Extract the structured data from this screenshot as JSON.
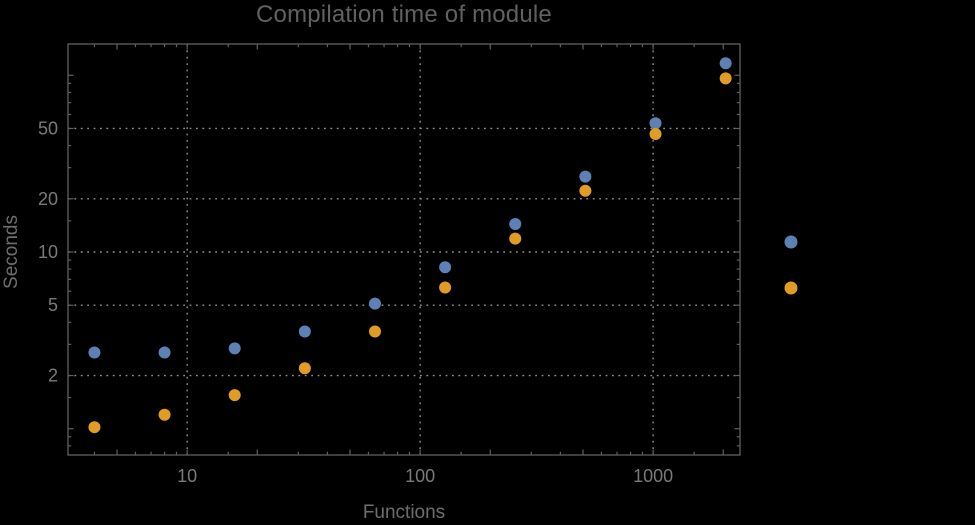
{
  "window": {
    "background": "#000000"
  },
  "colors": {
    "background": "#000000",
    "frame": "#5f5f5f",
    "grid": "#8f8f8f",
    "tick_label": "#7a7a7a",
    "title_text": "#616161",
    "axis_label_text": "#6e6e6e",
    "series_blue": "#5E81B5",
    "series_orange": "#E19C24"
  },
  "chart_data": {
    "type": "scatter",
    "title": "Compilation time of module",
    "xlabel": "Functions",
    "ylabel": "Seconds",
    "x_scale": "log",
    "y_scale": "log",
    "x_range": [
      3.08,
      2360
    ],
    "y_range": [
      0.71,
      150.3
    ],
    "x_ticks_labeled": [
      10,
      100,
      1000
    ],
    "y_ticks_labeled": [
      2,
      5,
      10,
      20,
      50
    ],
    "grid": "dotted gray lines at labeled ticks; full frame with inward log minor ticks on all four sides",
    "legend_position": "outside right of frame, marker dots only (no visible label text)",
    "x": [
      4,
      8,
      16,
      32,
      64,
      128,
      256,
      512,
      1024,
      2048
    ],
    "series": [
      {
        "name": "blue",
        "color": "#5E81B5",
        "values": [
          2.7,
          2.7,
          2.85,
          3.55,
          5.1,
          8.2,
          14.4,
          26.7,
          53.5,
          117
        ]
      },
      {
        "name": "orange",
        "color": "#E19C24",
        "values": [
          1.02,
          1.2,
          1.55,
          2.2,
          3.55,
          6.3,
          11.9,
          22.2,
          46.5,
          96
        ]
      }
    ],
    "legend_markers": [
      {
        "name": "blue",
        "color": "#5E81B5"
      },
      {
        "name": "orange",
        "color": "#E19C24"
      }
    ]
  }
}
